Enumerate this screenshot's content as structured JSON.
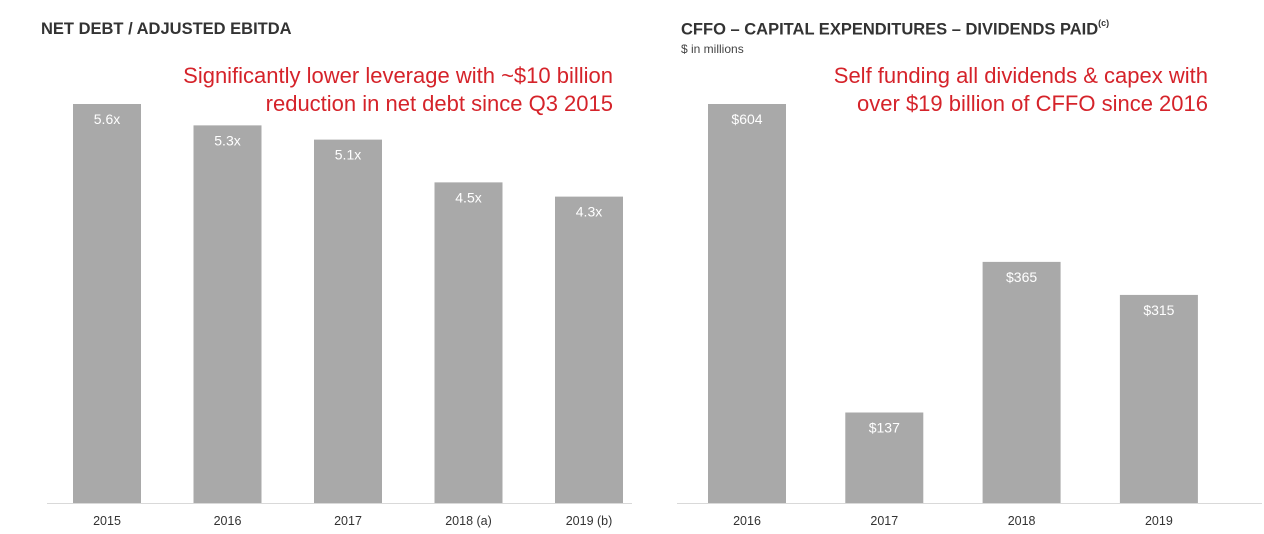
{
  "colors": {
    "bar": "#a9a9a9",
    "bar_label": "#ffffff",
    "axis_label": "#333333",
    "callout": "#d5232a",
    "title": "#333333",
    "baseline": "#d9d9d9"
  },
  "left_panel": {
    "title": "NET DEBT / ADJUSTED EBITDA",
    "callout": {
      "line1": "Significantly lower leverage with ~$10 billion",
      "line2": "reduction in net debt since Q3 2015"
    }
  },
  "right_panel": {
    "title": "CFFO – CAPITAL EXPENDITURES – DIVIDENDS PAID",
    "title_footnote": "(c)",
    "subtitle": "$ in millions",
    "callout": {
      "line1": "Self funding all dividends & capex with",
      "line2": "over $19 billion of CFFO since 2016"
    }
  },
  "chart_data": [
    {
      "type": "bar",
      "title": "NET DEBT / ADJUSTED EBITDA",
      "categories": [
        "2015",
        "2016",
        "2017",
        "2018 (a)",
        "2019 (b)"
      ],
      "values": [
        5.6,
        5.3,
        5.1,
        4.5,
        4.3
      ],
      "data_labels": [
        "5.6x",
        "5.3x",
        "5.1x",
        "4.5x",
        "4.3x"
      ],
      "ylim": [
        0,
        5.6
      ],
      "grid": false,
      "legend": "none"
    },
    {
      "type": "bar",
      "title": "CFFO – CAPITAL EXPENDITURES – DIVIDENDS PAID",
      "categories": [
        "2016",
        "2017",
        "2018",
        "2019"
      ],
      "values": [
        604,
        137,
        365,
        315
      ],
      "data_labels": [
        "$604",
        "$137",
        "$365",
        "$315"
      ],
      "ylim": [
        0,
        604
      ],
      "grid": false,
      "legend": "none"
    }
  ]
}
